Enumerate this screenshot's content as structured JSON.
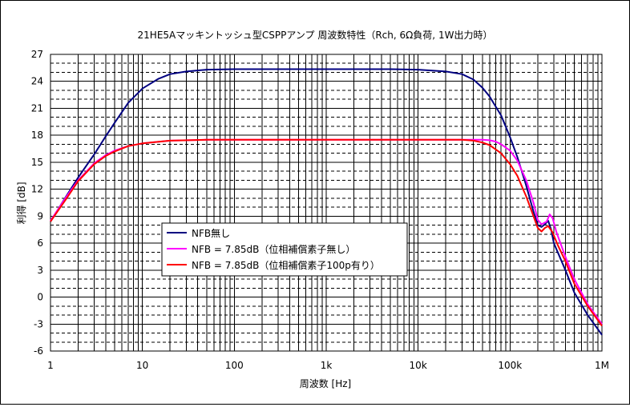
{
  "chart_data": {
    "type": "line",
    "title": "21HE5Aマッキントッシュ型CSPPアンプ 周波数特性（Rch, 6Ω負荷, 1W出力時）",
    "xlabel": "周波数 [Hz]",
    "ylabel": "利得 [dB]",
    "xscale": "log",
    "xlim": [
      1,
      1000000
    ],
    "ylim": [
      -6,
      27
    ],
    "x_ticks": [
      {
        "value": 1,
        "label": "1"
      },
      {
        "value": 10,
        "label": "10"
      },
      {
        "value": 100,
        "label": "100"
      },
      {
        "value": 1000,
        "label": "1k"
      },
      {
        "value": 10000,
        "label": "10k"
      },
      {
        "value": 100000,
        "label": "100k"
      },
      {
        "value": 1000000,
        "label": "1M"
      }
    ],
    "y_ticks": [
      -6,
      -3,
      0,
      3,
      6,
      9,
      12,
      15,
      18,
      21,
      24,
      27
    ],
    "grid": true,
    "legend_position": "lower-left",
    "series": [
      {
        "name": "NFB無し",
        "color": "#000080",
        "points": [
          [
            1,
            8.4
          ],
          [
            1.5,
            11.3
          ],
          [
            2,
            13.3
          ],
          [
            3,
            15.9
          ],
          [
            4,
            17.9
          ],
          [
            5,
            19.4
          ],
          [
            7,
            21.6
          ],
          [
            10,
            23.2
          ],
          [
            15,
            24.3
          ],
          [
            20,
            24.8
          ],
          [
            30,
            25.1
          ],
          [
            50,
            25.3
          ],
          [
            100,
            25.35
          ],
          [
            1000,
            25.35
          ],
          [
            5000,
            25.35
          ],
          [
            10000,
            25.3
          ],
          [
            20000,
            25.1
          ],
          [
            30000,
            24.8
          ],
          [
            40000,
            24.2
          ],
          [
            50000,
            23.3
          ],
          [
            60000,
            22.3
          ],
          [
            80000,
            20.2
          ],
          [
            100000,
            17.8
          ],
          [
            120000,
            15.6
          ],
          [
            150000,
            12.4
          ],
          [
            180000,
            9.5
          ],
          [
            200000,
            8.0
          ],
          [
            220000,
            7.8
          ],
          [
            240000,
            8.1
          ],
          [
            260000,
            8.5
          ],
          [
            280000,
            7.5
          ],
          [
            300000,
            6.0
          ],
          [
            400000,
            3.0
          ],
          [
            500000,
            0.5
          ],
          [
            700000,
            -2.0
          ],
          [
            1000000,
            -4.2
          ]
        ]
      },
      {
        "name": "NFB = 7.85dB（位相補償素子無し）",
        "color": "#ff00ff",
        "points": [
          [
            1,
            8.5
          ],
          [
            1.5,
            11.2
          ],
          [
            2,
            13.0
          ],
          [
            3,
            14.9
          ],
          [
            4,
            15.8
          ],
          [
            5,
            16.3
          ],
          [
            7,
            16.8
          ],
          [
            10,
            17.1
          ],
          [
            20,
            17.4
          ],
          [
            50,
            17.5
          ],
          [
            10000,
            17.5
          ],
          [
            30000,
            17.5
          ],
          [
            50000,
            17.5
          ],
          [
            60000,
            17.45
          ],
          [
            70000,
            17.3
          ],
          [
            80000,
            17.0
          ],
          [
            100000,
            16.3
          ],
          [
            120000,
            15.2
          ],
          [
            150000,
            13.0
          ],
          [
            180000,
            10.5
          ],
          [
            200000,
            8.6
          ],
          [
            220000,
            8.1
          ],
          [
            250000,
            8.4
          ],
          [
            270000,
            9.2
          ],
          [
            290000,
            8.8
          ],
          [
            320000,
            7.2
          ],
          [
            400000,
            4.5
          ],
          [
            500000,
            2.0
          ],
          [
            700000,
            -0.8
          ],
          [
            1000000,
            -3.0
          ]
        ]
      },
      {
        "name": "NFB = 7.85dB（位相補償素子100p有り）",
        "color": "#ff0000",
        "points": [
          [
            1,
            8.4
          ],
          [
            1.5,
            11.0
          ],
          [
            2,
            12.9
          ],
          [
            3,
            14.8
          ],
          [
            4,
            15.7
          ],
          [
            5,
            16.2
          ],
          [
            7,
            16.8
          ],
          [
            10,
            17.1
          ],
          [
            20,
            17.4
          ],
          [
            50,
            17.5
          ],
          [
            10000,
            17.5
          ],
          [
            30000,
            17.5
          ],
          [
            40000,
            17.4
          ],
          [
            50000,
            17.2
          ],
          [
            60000,
            16.9
          ],
          [
            80000,
            16.0
          ],
          [
            100000,
            14.8
          ],
          [
            120000,
            13.5
          ],
          [
            150000,
            11.2
          ],
          [
            180000,
            9.0
          ],
          [
            200000,
            7.7
          ],
          [
            220000,
            7.3
          ],
          [
            240000,
            7.7
          ],
          [
            260000,
            7.9
          ],
          [
            290000,
            7.2
          ],
          [
            330000,
            5.8
          ],
          [
            400000,
            4.0
          ],
          [
            500000,
            1.5
          ],
          [
            700000,
            -1.0
          ],
          [
            1000000,
            -3.2
          ]
        ]
      }
    ]
  }
}
